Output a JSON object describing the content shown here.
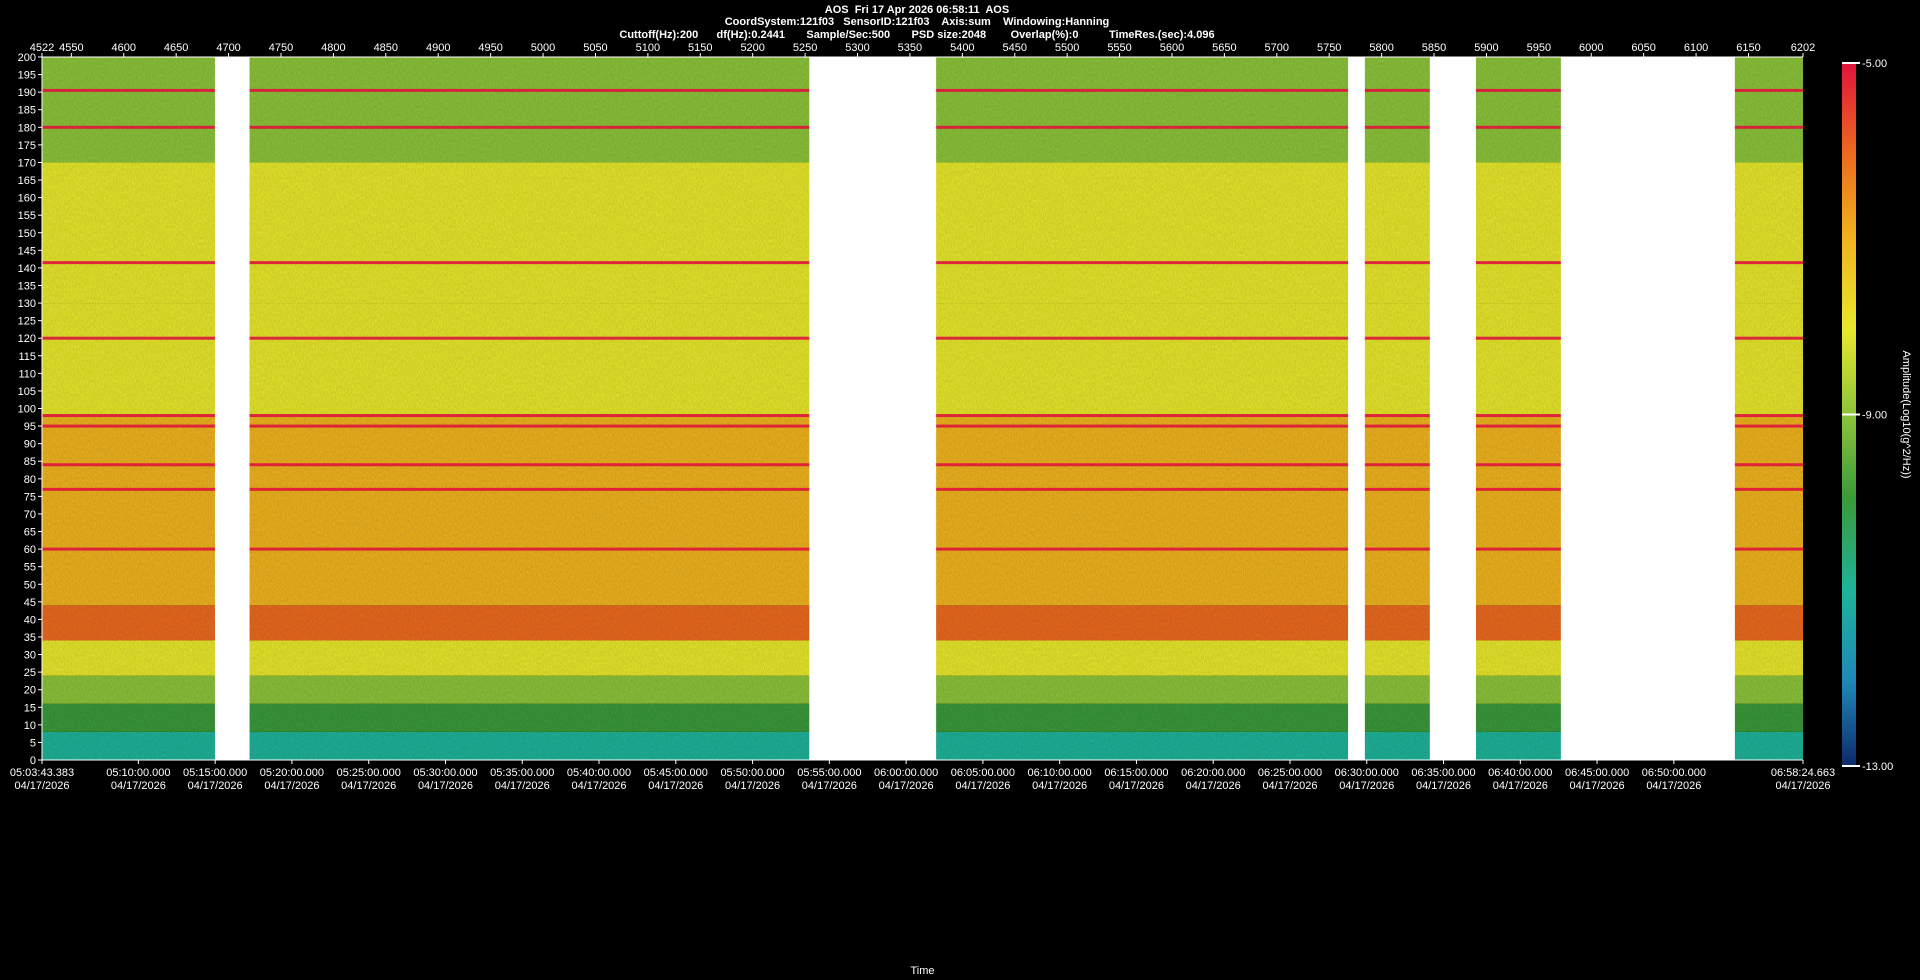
{
  "header": {
    "line1": "AOS  Fri 17 Apr 2026 06:58:11  AOS",
    "line2": "CoordSystem:121f03   SensorID:121f03    Axis:sum    Windowing:Hanning",
    "line3": "Cuttoff(Hz):200      df(Hz):0.2441       Sample/Sec:500       PSD size:2048        Overlap(%):0          TimeRes.(sec):4.096"
  },
  "colors": {
    "background": "#000000",
    "gap": "#ffffff",
    "colormap": [
      "#0d2a6a",
      "#1e88b8",
      "#1fb39a",
      "#3a9a3a",
      "#8cc43a",
      "#e8e82c",
      "#f0b41e",
      "#ec6a1e",
      "#e0143c"
    ]
  },
  "chart_data": {
    "type": "heatmap",
    "title": "AOS  Fri 17 Apr 2026 06:58:11  AOS",
    "xlabel": "Time",
    "ylabel": "",
    "colorbar_label": "Amplitude(Log10(g^2/Hz))",
    "colorbar_range": [
      -13.0,
      -5.0
    ],
    "colorbar_ticks": [
      "-5.00",
      "-9.00",
      "-13.00"
    ],
    "ylim": [
      0,
      200
    ],
    "y_ticks": [
      200,
      195,
      190,
      185,
      180,
      175,
      170,
      165,
      160,
      155,
      150,
      145,
      140,
      135,
      130,
      125,
      120,
      115,
      110,
      105,
      100,
      95,
      90,
      85,
      80,
      75,
      70,
      65,
      60,
      55,
      50,
      45,
      40,
      35,
      30,
      25,
      20,
      15,
      10,
      5,
      0
    ],
    "index_range": [
      4522,
      6202
    ],
    "top_ticks": [
      "4522",
      "4550",
      "4600",
      "4650",
      "4700",
      "4750",
      "4800",
      "4850",
      "4900",
      "4950",
      "5000",
      "5050",
      "5100",
      "5150",
      "5200",
      "5250",
      "5300",
      "5350",
      "5400",
      "5450",
      "5500",
      "5550",
      "5600",
      "5650",
      "5700",
      "5750",
      "5800",
      "5850",
      "5900",
      "5950",
      "6000",
      "6050",
      "6100",
      "6150",
      "6202"
    ],
    "time_ticks": [
      {
        "time": "05:03:43.383",
        "date": "04/17/2026"
      },
      {
        "time": "05:10:00.000",
        "date": "04/17/2026"
      },
      {
        "time": "05:15:00.000",
        "date": "04/17/2026"
      },
      {
        "time": "05:20:00.000",
        "date": "04/17/2026"
      },
      {
        "time": "05:25:00.000",
        "date": "04/17/2026"
      },
      {
        "time": "05:30:00.000",
        "date": "04/17/2026"
      },
      {
        "time": "05:35:00.000",
        "date": "04/17/2026"
      },
      {
        "time": "05:40:00.000",
        "date": "04/17/2026"
      },
      {
        "time": "05:45:00.000",
        "date": "04/17/2026"
      },
      {
        "time": "05:50:00.000",
        "date": "04/17/2026"
      },
      {
        "time": "05:55:00.000",
        "date": "04/17/2026"
      },
      {
        "time": "06:00:00.000",
        "date": "04/17/2026"
      },
      {
        "time": "06:05:00.000",
        "date": "04/17/2026"
      },
      {
        "time": "06:10:00.000",
        "date": "04/17/2026"
      },
      {
        "time": "06:15:00.000",
        "date": "04/17/2026"
      },
      {
        "time": "06:20:00.000",
        "date": "04/17/2026"
      },
      {
        "time": "06:25:00.000",
        "date": "04/17/2026"
      },
      {
        "time": "06:30:00.000",
        "date": "04/17/2026"
      },
      {
        "time": "06:35:00.000",
        "date": "04/17/2026"
      },
      {
        "time": "06:40:00.000",
        "date": "04/17/2026"
      },
      {
        "time": "06:45:00.000",
        "date": "04/17/2026"
      },
      {
        "time": "06:50:00.000",
        "date": "04/17/2026"
      },
      {
        "time": "06:58:24.663",
        "date": "04/17/2026"
      }
    ],
    "data_gaps": [
      [
        4687,
        4720
      ],
      [
        5254,
        5375
      ],
      [
        5768,
        5784
      ],
      [
        5846,
        5890
      ],
      [
        5971,
        6137
      ]
    ],
    "frequency_bands": [
      {
        "from": 0,
        "to": 8,
        "level": 0.25
      },
      {
        "from": 8,
        "to": 16,
        "level": 0.32
      },
      {
        "from": 16,
        "to": 24,
        "level": 0.45
      },
      {
        "from": 24,
        "to": 34,
        "level": 0.6
      },
      {
        "from": 34,
        "to": 44,
        "level": 0.92
      },
      {
        "from": 44,
        "to": 60,
        "level": 0.8
      },
      {
        "from": 60,
        "to": 98,
        "level": 0.72
      },
      {
        "from": 98,
        "to": 130,
        "level": 0.66
      },
      {
        "from": 130,
        "to": 170,
        "level": 0.6
      },
      {
        "from": 170,
        "to": 200,
        "level": 0.54
      }
    ],
    "tonal_lines_hz": [
      180,
      141.5,
      120,
      98,
      60,
      77,
      84,
      95,
      190.5
    ],
    "grid": false,
    "legend": "none"
  }
}
